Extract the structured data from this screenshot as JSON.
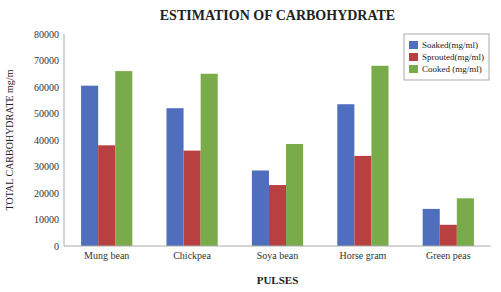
{
  "chart_data": {
    "type": "bar",
    "title": "ESTIMATION OF CARBOHYDRATE",
    "xlabel": "PULSES",
    "ylabel": "TOTAL CARBOHYDRATE mg/m",
    "categories": [
      "Mung bean",
      "Chickpea",
      "Soya bean",
      "Horse gram",
      "Green peas"
    ],
    "series": [
      {
        "name": "Soaked(mg/ml)",
        "color": "#4f6fbe",
        "values": [
          60500,
          52000,
          28500,
          53500,
          14000
        ]
      },
      {
        "name": "Sprouted(mg/ml)",
        "color": "#b94040",
        "values": [
          38000,
          36000,
          23000,
          34000,
          8000
        ]
      },
      {
        "name": "Cooked (mg/ml)",
        "color": "#7aab4a",
        "values": [
          66000,
          65000,
          38500,
          68000,
          18000
        ]
      }
    ],
    "ylim": [
      0,
      80000
    ],
    "yticks": [
      0,
      10000,
      20000,
      30000,
      40000,
      50000,
      60000,
      70000,
      80000
    ],
    "grid": false,
    "legend": "upper right"
  }
}
